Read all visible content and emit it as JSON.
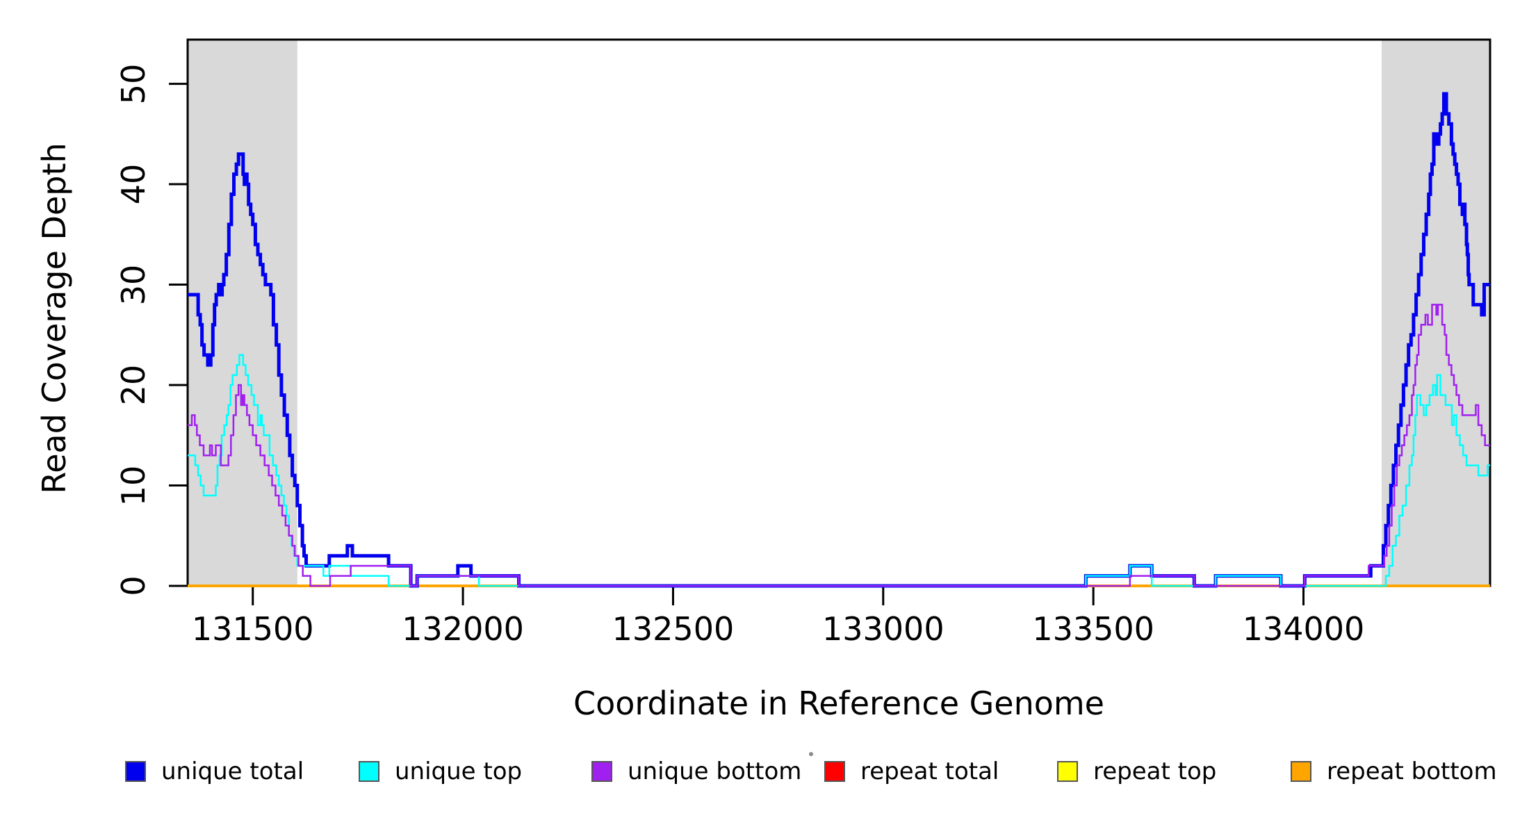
{
  "axes": {
    "x": {
      "label": "Coordinate in Reference Genome",
      "tick_labels": [
        "131500",
        "132000",
        "132500",
        "133000",
        "133500",
        "134000"
      ]
    },
    "y": {
      "label": "Read Coverage Depth",
      "tick_labels": [
        "0",
        "10",
        "20",
        "30",
        "40",
        "50"
      ]
    }
  },
  "legend": {
    "items": [
      {
        "label": "unique total",
        "color": "#0000EE"
      },
      {
        "label": "unique top",
        "color": "#00FFFF"
      },
      {
        "label": "unique bottom",
        "color": "#A020F0"
      },
      {
        "label": "repeat total",
        "color": "#FF0000"
      },
      {
        "label": "repeat top",
        "color": "#FFFF00"
      },
      {
        "label": "repeat bottom",
        "color": "#FFA500"
      }
    ]
  },
  "chart_data": {
    "type": "line",
    "subtype": "step",
    "title": "",
    "xlabel": "Coordinate in Reference Genome",
    "ylabel": "Read Coverage Depth",
    "x_range": [
      131345,
      134444
    ],
    "y_range": [
      0,
      54.4
    ],
    "x_ticks": [
      131500,
      132000,
      132500,
      133000,
      133500,
      134000
    ],
    "y_ticks": [
      0,
      10,
      20,
      30,
      40,
      50
    ],
    "grid": false,
    "legend_position": "bottom",
    "shaded_regions": {
      "color": "#D9D9D9",
      "intervals": [
        [
          131345,
          131606
        ],
        [
          134186,
          134444
        ]
      ]
    },
    "series": [
      {
        "name": "repeat total",
        "color": "#FF0000",
        "width": 3,
        "steps": [
          [
            131345,
            0
          ]
        ]
      },
      {
        "name": "repeat top",
        "color": "#FFFF00",
        "width": 3,
        "steps": [
          [
            131345,
            0
          ]
        ]
      },
      {
        "name": "repeat bottom",
        "color": "#FFA500",
        "width": 4,
        "steps": [
          [
            131345,
            0
          ]
        ]
      },
      {
        "name": "unique total",
        "color": "#0000EE",
        "width": 5,
        "steps": [
          [
            131345,
            29
          ],
          [
            131370,
            27
          ],
          [
            131375,
            26
          ],
          [
            131379,
            24
          ],
          [
            131384,
            23
          ],
          [
            131393,
            22
          ],
          [
            131400,
            23
          ],
          [
            131405,
            26
          ],
          [
            131409,
            28
          ],
          [
            131413,
            29
          ],
          [
            131419,
            30
          ],
          [
            131423,
            29
          ],
          [
            131427,
            30
          ],
          [
            131431,
            31
          ],
          [
            131437,
            33
          ],
          [
            131443,
            36
          ],
          [
            131449,
            39
          ],
          [
            131455,
            41
          ],
          [
            131461,
            42
          ],
          [
            131466,
            43
          ],
          [
            131477,
            41
          ],
          [
            131480,
            40
          ],
          [
            131483,
            41
          ],
          [
            131486,
            40
          ],
          [
            131490,
            38
          ],
          [
            131495,
            37
          ],
          [
            131500,
            36
          ],
          [
            131506,
            34
          ],
          [
            131512,
            33
          ],
          [
            131518,
            32
          ],
          [
            131524,
            31
          ],
          [
            131530,
            30
          ],
          [
            131543,
            29
          ],
          [
            131549,
            26
          ],
          [
            131556,
            24
          ],
          [
            131562,
            21
          ],
          [
            131568,
            19
          ],
          [
            131575,
            17
          ],
          [
            131582,
            15
          ],
          [
            131588,
            13
          ],
          [
            131594,
            11
          ],
          [
            131600,
            10
          ],
          [
            131606,
            8
          ],
          [
            131612,
            6
          ],
          [
            131618,
            4
          ],
          [
            131622,
            3
          ],
          [
            131627,
            2
          ],
          [
            131682,
            3
          ],
          [
            131725,
            4
          ],
          [
            131737,
            3
          ],
          [
            131823,
            2
          ],
          [
            131876,
            0
          ],
          [
            131891,
            1
          ],
          [
            131988,
            2
          ],
          [
            132019,
            1
          ],
          [
            132133,
            0
          ],
          [
            133482,
            1
          ],
          [
            133587,
            2
          ],
          [
            133639,
            1
          ],
          [
            133740,
            0
          ],
          [
            133791,
            1
          ],
          [
            133946,
            0
          ],
          [
            134003,
            1
          ],
          [
            134160,
            2
          ],
          [
            134190,
            4
          ],
          [
            134196,
            6
          ],
          [
            134202,
            8
          ],
          [
            134208,
            10
          ],
          [
            134214,
            12
          ],
          [
            134220,
            14
          ],
          [
            134226,
            16
          ],
          [
            134232,
            18
          ],
          [
            134238,
            20
          ],
          [
            134244,
            22
          ],
          [
            134250,
            24
          ],
          [
            134256,
            25
          ],
          [
            134262,
            27
          ],
          [
            134268,
            29
          ],
          [
            134274,
            31
          ],
          [
            134280,
            33
          ],
          [
            134286,
            35
          ],
          [
            134292,
            37
          ],
          [
            134298,
            39
          ],
          [
            134302,
            41
          ],
          [
            134306,
            42
          ],
          [
            134310,
            45
          ],
          [
            134316,
            44
          ],
          [
            134322,
            45
          ],
          [
            134326,
            46
          ],
          [
            134330,
            47
          ],
          [
            134334,
            49
          ],
          [
            134340,
            47
          ],
          [
            134346,
            46
          ],
          [
            134352,
            44
          ],
          [
            134356,
            43
          ],
          [
            134360,
            42
          ],
          [
            134364,
            41
          ],
          [
            134368,
            40
          ],
          [
            134372,
            38
          ],
          [
            134378,
            37
          ],
          [
            134382,
            38
          ],
          [
            134384,
            36
          ],
          [
            134388,
            34
          ],
          [
            134390,
            33
          ],
          [
            134392,
            31
          ],
          [
            134394,
            30
          ],
          [
            134404,
            28
          ],
          [
            134424,
            27
          ],
          [
            134430,
            30
          ]
        ]
      },
      {
        "name": "unique top",
        "color": "#00FFFF",
        "width": 2.5,
        "steps": [
          [
            131345,
            13
          ],
          [
            131363,
            12
          ],
          [
            131370,
            11
          ],
          [
            131376,
            10
          ],
          [
            131383,
            9
          ],
          [
            131412,
            10
          ],
          [
            131416,
            12
          ],
          [
            131421,
            13
          ],
          [
            131426,
            15
          ],
          [
            131432,
            16
          ],
          [
            131438,
            17
          ],
          [
            131442,
            18
          ],
          [
            131447,
            20
          ],
          [
            131452,
            21
          ],
          [
            131462,
            22
          ],
          [
            131468,
            23
          ],
          [
            131477,
            22
          ],
          [
            131483,
            21
          ],
          [
            131489,
            20
          ],
          [
            131497,
            19
          ],
          [
            131503,
            18
          ],
          [
            131512,
            16
          ],
          [
            131518,
            17
          ],
          [
            131522,
            16
          ],
          [
            131526,
            15
          ],
          [
            131540,
            13
          ],
          [
            131548,
            12
          ],
          [
            131556,
            11
          ],
          [
            131562,
            10
          ],
          [
            131568,
            9
          ],
          [
            131574,
            8
          ],
          [
            131580,
            7
          ],
          [
            131586,
            5
          ],
          [
            131592,
            4
          ],
          [
            131598,
            3
          ],
          [
            131606,
            2
          ],
          [
            131668,
            1
          ],
          [
            131682,
            2
          ],
          [
            131733,
            1
          ],
          [
            131823,
            0
          ],
          [
            131891,
            1
          ],
          [
            132038,
            0
          ],
          [
            133482,
            1
          ],
          [
            133587,
            2
          ],
          [
            133639,
            0
          ],
          [
            133791,
            1
          ],
          [
            133946,
            0
          ],
          [
            134196,
            1
          ],
          [
            134204,
            2
          ],
          [
            134212,
            4
          ],
          [
            134220,
            5
          ],
          [
            134228,
            7
          ],
          [
            134236,
            8
          ],
          [
            134244,
            10
          ],
          [
            134252,
            12
          ],
          [
            134258,
            13
          ],
          [
            134262,
            15
          ],
          [
            134266,
            17
          ],
          [
            134270,
            19
          ],
          [
            134278,
            18
          ],
          [
            134286,
            17
          ],
          [
            134292,
            18
          ],
          [
            134300,
            19
          ],
          [
            134308,
            20
          ],
          [
            134314,
            19
          ],
          [
            134318,
            21
          ],
          [
            134326,
            19
          ],
          [
            134338,
            18
          ],
          [
            134353,
            16
          ],
          [
            134358,
            17
          ],
          [
            134364,
            15
          ],
          [
            134372,
            14
          ],
          [
            134380,
            13
          ],
          [
            134388,
            12
          ],
          [
            134416,
            11
          ],
          [
            134438,
            12
          ]
        ]
      },
      {
        "name": "unique bottom",
        "color": "#A020F0",
        "width": 2.5,
        "steps": [
          [
            131345,
            16
          ],
          [
            131355,
            17
          ],
          [
            131362,
            16
          ],
          [
            131367,
            15
          ],
          [
            131374,
            14
          ],
          [
            131383,
            13
          ],
          [
            131398,
            14
          ],
          [
            131403,
            13
          ],
          [
            131412,
            14
          ],
          [
            131424,
            12
          ],
          [
            131442,
            13
          ],
          [
            131448,
            15
          ],
          [
            131454,
            17
          ],
          [
            131460,
            19
          ],
          [
            131466,
            20
          ],
          [
            131472,
            18
          ],
          [
            131476,
            19
          ],
          [
            131480,
            18
          ],
          [
            131486,
            17
          ],
          [
            131492,
            16
          ],
          [
            131500,
            15
          ],
          [
            131508,
            14
          ],
          [
            131518,
            13
          ],
          [
            131528,
            12
          ],
          [
            131538,
            11
          ],
          [
            131546,
            10
          ],
          [
            131554,
            9
          ],
          [
            131562,
            8
          ],
          [
            131570,
            7
          ],
          [
            131578,
            6
          ],
          [
            131586,
            5
          ],
          [
            131594,
            4
          ],
          [
            131600,
            3
          ],
          [
            131609,
            2
          ],
          [
            131619,
            1
          ],
          [
            131637,
            0
          ],
          [
            131684,
            1
          ],
          [
            131733,
            2
          ],
          [
            131876,
            0
          ],
          [
            131891,
            1
          ],
          [
            132133,
            0
          ],
          [
            133587,
            1
          ],
          [
            133740,
            0
          ],
          [
            134003,
            1
          ],
          [
            134155,
            2
          ],
          [
            134192,
            3
          ],
          [
            134198,
            4
          ],
          [
            134204,
            6
          ],
          [
            134210,
            8
          ],
          [
            134216,
            10
          ],
          [
            134222,
            12
          ],
          [
            134228,
            13
          ],
          [
            134234,
            14
          ],
          [
            134240,
            15
          ],
          [
            134246,
            16
          ],
          [
            134252,
            17
          ],
          [
            134258,
            19
          ],
          [
            134262,
            20
          ],
          [
            134266,
            22
          ],
          [
            134270,
            23
          ],
          [
            134274,
            25
          ],
          [
            134280,
            26
          ],
          [
            134290,
            27
          ],
          [
            134296,
            26
          ],
          [
            134306,
            28
          ],
          [
            134316,
            27
          ],
          [
            134320,
            28
          ],
          [
            134330,
            26
          ],
          [
            134336,
            25
          ],
          [
            134340,
            23
          ],
          [
            134346,
            22
          ],
          [
            134352,
            21
          ],
          [
            134358,
            20
          ],
          [
            134364,
            19
          ],
          [
            134370,
            18
          ],
          [
            134378,
            17
          ],
          [
            134410,
            18
          ],
          [
            134416,
            16
          ],
          [
            134424,
            15
          ],
          [
            134432,
            14
          ]
        ]
      }
    ]
  }
}
